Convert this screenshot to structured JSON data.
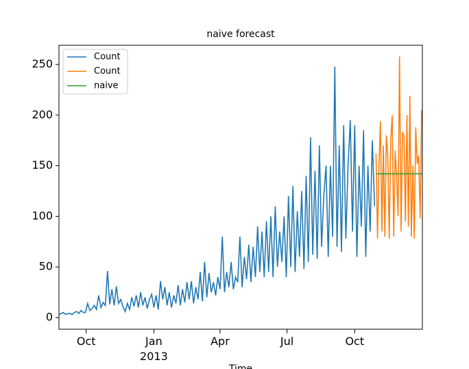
{
  "chart_data": {
    "type": "line",
    "title": "naive forecast",
    "xlabel": "Time",
    "xlim": [
      -37,
      457
    ],
    "ylim": [
      -11.5,
      269
    ],
    "xticks": [
      {
        "value": 0,
        "label": "Oct"
      },
      {
        "value": 92,
        "label": "Jan\n2013"
      },
      {
        "value": 182,
        "label": "Apr"
      },
      {
        "value": 273,
        "label": "Jul"
      },
      {
        "value": 365,
        "label": "Oct"
      }
    ],
    "yticks": [
      0,
      50,
      100,
      150,
      200,
      250
    ],
    "legend": "upper left",
    "series": [
      {
        "name": "Count",
        "color": "#1f77b4",
        "x": [
          -37,
          -34,
          -31,
          -28,
          -25,
          -22,
          -19,
          -16,
          -13,
          -10,
          -7,
          -4,
          -1,
          2,
          5,
          8,
          11,
          14,
          17,
          20,
          23,
          26,
          29,
          32,
          35,
          38,
          41,
          44,
          47,
          50,
          53,
          56,
          59,
          62,
          65,
          68,
          71,
          74,
          77,
          80,
          83,
          86,
          89,
          92,
          95,
          98,
          101,
          104,
          107,
          110,
          113,
          116,
          119,
          122,
          125,
          128,
          131,
          134,
          137,
          140,
          143,
          146,
          149,
          152,
          155,
          158,
          161,
          164,
          167,
          170,
          173,
          176,
          179,
          182,
          185,
          188,
          191,
          194,
          197,
          200,
          203,
          206,
          209,
          212,
          215,
          218,
          221,
          224,
          227,
          230,
          233,
          236,
          239,
          242,
          245,
          248,
          251,
          254,
          257,
          260,
          263,
          266,
          269,
          272,
          275,
          278,
          281,
          284,
          287,
          290,
          293,
          296,
          299,
          302,
          305,
          308,
          311,
          314,
          317,
          320,
          323,
          326,
          329,
          332,
          335,
          338,
          341,
          344,
          347,
          350,
          353,
          356,
          359,
          362,
          365,
          368,
          371,
          374,
          377,
          380,
          383,
          386,
          389,
          392
        ],
        "values": [
          3,
          4,
          5,
          3,
          4,
          4,
          3,
          5,
          6,
          4,
          7,
          5,
          5,
          14,
          7,
          9,
          12,
          8,
          22,
          10,
          15,
          12,
          46,
          13,
          28,
          12,
          31,
          14,
          18,
          11,
          6,
          14,
          8,
          20,
          11,
          22,
          10,
          25,
          12,
          20,
          9,
          18,
          23,
          10,
          22,
          8,
          36,
          18,
          30,
          12,
          25,
          10,
          22,
          14,
          32,
          12,
          28,
          15,
          35,
          18,
          36,
          14,
          30,
          18,
          45,
          16,
          55,
          20,
          44,
          25,
          35,
          22,
          40,
          28,
          80,
          25,
          45,
          30,
          55,
          28,
          40,
          35,
          80,
          30,
          60,
          38,
          72,
          35,
          70,
          40,
          90,
          45,
          85,
          40,
          95,
          45,
          100,
          40,
          110,
          50,
          85,
          55,
          100,
          40,
          120,
          50,
          130,
          45,
          105,
          60,
          125,
          48,
          140,
          55,
          178,
          62,
          145,
          58,
          170,
          70,
          120,
          150,
          60,
          150,
          80,
          248,
          70,
          170,
          65,
          190,
          78,
          150,
          195,
          85,
          190,
          60,
          150,
          90,
          185,
          60,
          150,
          85,
          175,
          110
        ]
      },
      {
        "name": "Count",
        "color": "#ff7f0e",
        "x": [
          394,
          396,
          398,
          400,
          402,
          404,
          406,
          408,
          410,
          412,
          414,
          416,
          418,
          420,
          422,
          424,
          426,
          428,
          430,
          432,
          434,
          436,
          438,
          440,
          442,
          444,
          446,
          448,
          450,
          452,
          454,
          456
        ],
        "values": [
          162,
          78,
          150,
          194,
          85,
          170,
          80,
          180,
          160,
          78,
          175,
          200,
          80,
          165,
          140,
          100,
          258,
          85,
          183,
          180,
          95,
          200,
          90,
          219,
          80,
          150,
          78,
          188,
          152,
          160,
          98,
          205
        ]
      },
      {
        "name": "naive",
        "color": "#2ca02c",
        "x": [
          394,
          457
        ],
        "values": [
          142,
          142
        ]
      }
    ]
  }
}
